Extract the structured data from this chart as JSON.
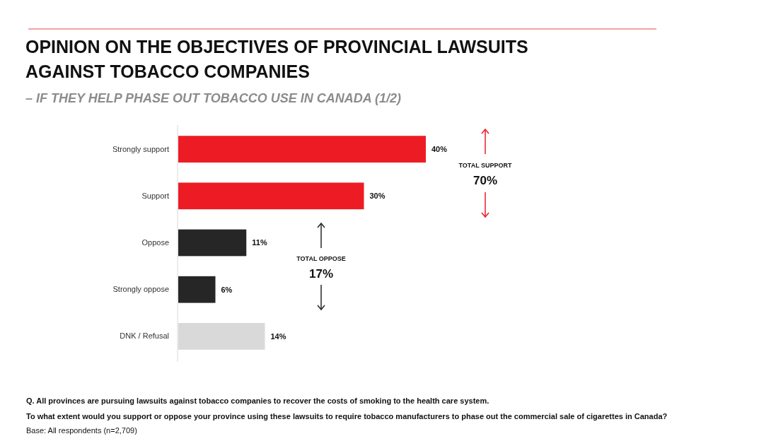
{
  "chart_data": {
    "type": "bar",
    "orientation": "horizontal",
    "title": "OPINION ON THE OBJECTIVES OF PROVINCIAL LAWSUITS AGAINST TOBACCO COMPANIES",
    "subtitle": "– IF THEY HELP PHASE OUT TOBACCO USE IN CANADA (1/2)",
    "categories": [
      "Strongly support",
      "Support",
      "Oppose",
      "Strongly oppose",
      "DNK / Refusal"
    ],
    "values": [
      40,
      30,
      11,
      6,
      14
    ],
    "colors": [
      "#ed1c24",
      "#ed1c24",
      "#262626",
      "#262626",
      "#d9d9d9"
    ],
    "value_labels": [
      "40%",
      "30%",
      "11%",
      "6%",
      "14%"
    ],
    "xlim": [
      0,
      40
    ],
    "tick_labels": "y",
    "annotations": [
      "TOTAL SUPPORT",
      "70%",
      "TOTAL OPPOSE",
      "17%",
      "Q. All provinces are pursuing lawsuits against tobacco companies to recover the costs of smoking to the health care system.",
      "To what extent would you support or oppose your province using these lawsuits to require tobacco manufacturers to phase out the commercial sale of cigarettes in Canada?",
      "Base: All respondents (n=2,709)"
    ]
  }
}
